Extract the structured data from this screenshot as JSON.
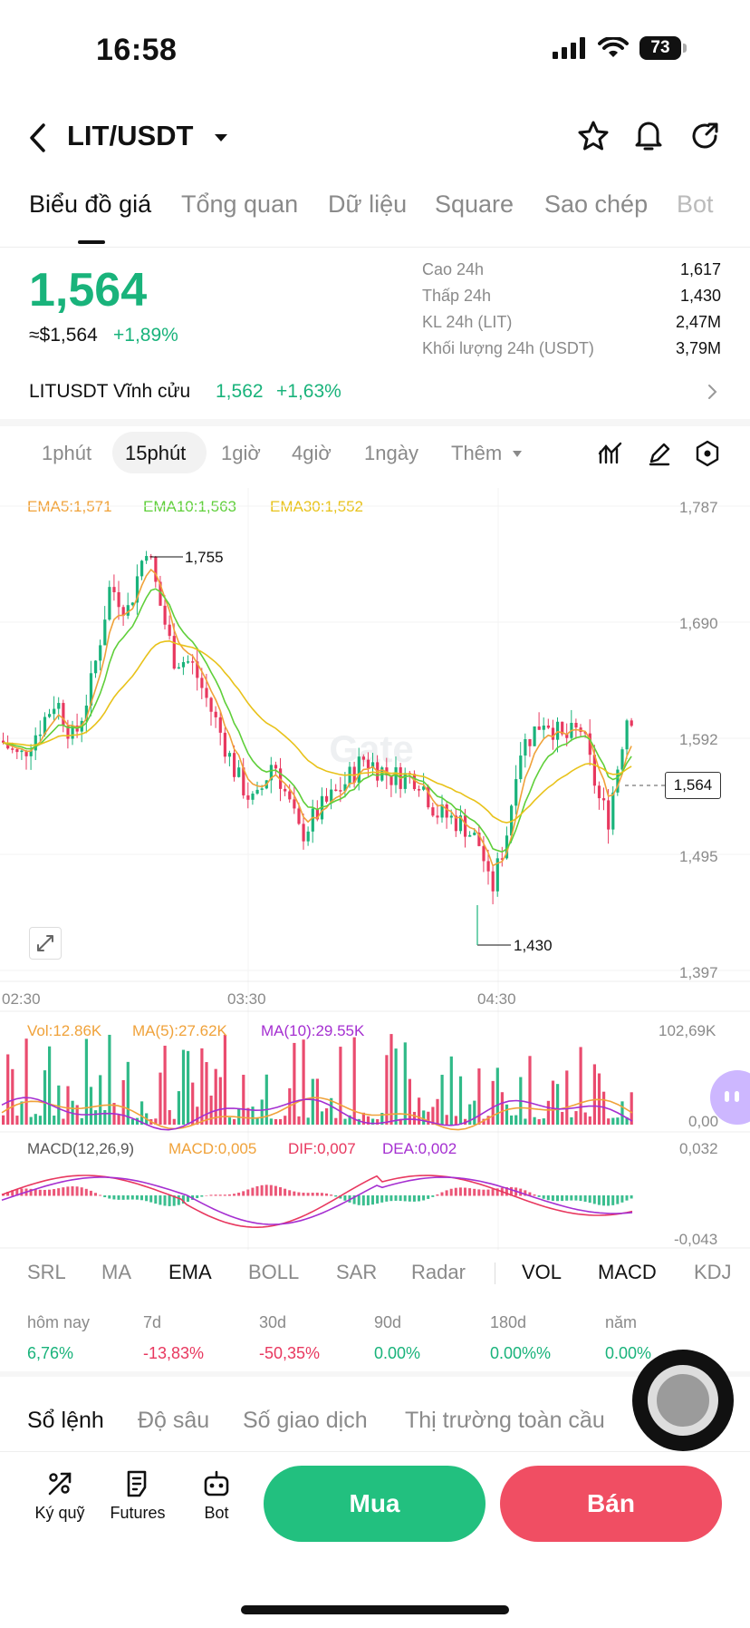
{
  "status_bar": {
    "time": "16:58",
    "battery": "73"
  },
  "header": {
    "pair": "LIT/USDT"
  },
  "tabs": [
    "Biểu đồ giá",
    "Tổng quan",
    "Dữ liệu",
    "Square",
    "Sao chép",
    "Bot"
  ],
  "price": {
    "last": "1,564",
    "usd": "≈$1,564",
    "change": "+1,89%"
  },
  "stats": [
    {
      "label": "Cao 24h",
      "value": "1,617"
    },
    {
      "label": "Thấp 24h",
      "value": "1,430"
    },
    {
      "label": "KL 24h (LIT)",
      "value": "2,47M"
    },
    {
      "label": "Khối lượng 24h (USDT)",
      "value": "3,79M"
    }
  ],
  "perpetual": {
    "label": "LITUSDT Vĩnh cửu",
    "price": "1,562",
    "change": "+1,63%"
  },
  "timeframes": [
    "1phút",
    "15phút",
    "1giờ",
    "4giờ",
    "1ngày",
    "Thêm"
  ],
  "chart": {
    "ema": {
      "ema5": "EMA5:1,571",
      "ema10": "EMA10:1,563",
      "ema30": "EMA30:1,552"
    },
    "y_ticks": [
      "1,787",
      "1,690",
      "1,592",
      "1,495",
      "1,397"
    ],
    "x_ticks": [
      "02:30",
      "03:30",
      "04:30"
    ],
    "high_marker": "1,755",
    "low_marker": "1,430",
    "current_price_tag": "1,564",
    "watermark": "Gate",
    "volume": {
      "vol": "Vol:12.86K",
      "ma5": "MA(5):27.62K",
      "ma10": "MA(10):29.55K",
      "max": "102,69K",
      "min": "0,00"
    },
    "macd": {
      "title": "MACD(12,26,9)",
      "macd": "MACD:0,005",
      "dif": "DIF:0,007",
      "dea": "DEA:0,002",
      "max": "0,032",
      "min": "-0,043"
    },
    "colors": {
      "up": "#19b37b",
      "down": "#e8385f",
      "ema5": "#f0a23a",
      "ema10": "#5fcf3a",
      "ema30": "#e8c21a",
      "ma10": "#a52fd1"
    }
  },
  "chart_data": {
    "type": "candlestick",
    "title": "",
    "yrange": [
      1397,
      1787
    ],
    "x_labels": [
      "02:30",
      "03:30",
      "04:30"
    ],
    "annotations": [
      {
        "label": "1,755",
        "kind": "high"
      },
      {
        "label": "1,430",
        "kind": "low"
      }
    ],
    "last_price": 1564,
    "series": [
      {
        "name": "EMA5",
        "last": 1571
      },
      {
        "name": "EMA10",
        "last": 1563
      },
      {
        "name": "EMA30",
        "last": 1552
      }
    ],
    "volume_range": [
      0,
      102690
    ],
    "macd_range": [
      -0.043,
      0.032
    ]
  },
  "indicator_tabs": [
    "SRL",
    "MA",
    "EMA",
    "BOLL",
    "SAR",
    "Radar",
    "VOL",
    "MACD",
    "KDJ"
  ],
  "performance": [
    {
      "label": "hôm nay",
      "value": "6,76%",
      "dir": "up"
    },
    {
      "label": "7d",
      "value": "-13,83%",
      "dir": "down"
    },
    {
      "label": "30d",
      "value": "-50,35%",
      "dir": "down"
    },
    {
      "label": "90d",
      "value": "0.00%",
      "dir": "up"
    },
    {
      "label": "180d",
      "value": "0.00%%",
      "dir": "up"
    },
    {
      "label": "năm",
      "value": "0.00%",
      "dir": "up"
    }
  ],
  "book_tabs": [
    "Sổ lệnh",
    "Độ sâu",
    "Số giao dịch",
    "Thị trường toàn cầu"
  ],
  "bottom": {
    "margin": "Ký quỹ",
    "futures": "Futures",
    "bot": "Bot",
    "buy": "Mua",
    "sell": "Bán"
  }
}
